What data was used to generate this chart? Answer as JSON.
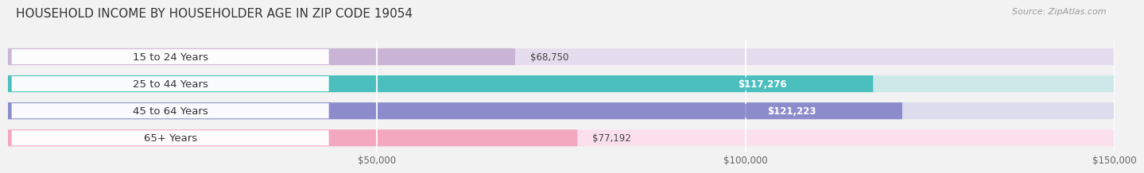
{
  "title": "HOUSEHOLD INCOME BY HOUSEHOLDER AGE IN ZIP CODE 19054",
  "source": "Source: ZipAtlas.com",
  "categories": [
    "15 to 24 Years",
    "25 to 44 Years",
    "45 to 64 Years",
    "65+ Years"
  ],
  "values": [
    68750,
    117276,
    121223,
    77192
  ],
  "bar_colors": [
    "#c9b4d6",
    "#4bbfbe",
    "#8c8ccc",
    "#f4a8bf"
  ],
  "bar_bg_colors": [
    "#e5dded",
    "#cce8e8",
    "#dcdcee",
    "#fbe0ec"
  ],
  "value_labels": [
    "$68,750",
    "$117,276",
    "$121,223",
    "$77,192"
  ],
  "label_inside": [
    false,
    true,
    true,
    false
  ],
  "xlim": [
    0,
    150000
  ],
  "xticks": [
    50000,
    100000,
    150000
  ],
  "xtick_labels": [
    "$50,000",
    "$100,000",
    "$150,000"
  ],
  "title_fontsize": 11,
  "source_fontsize": 8,
  "label_fontsize": 9.5,
  "value_fontsize": 8.5,
  "tick_fontsize": 8.5,
  "background_color": "#f2f2f2"
}
